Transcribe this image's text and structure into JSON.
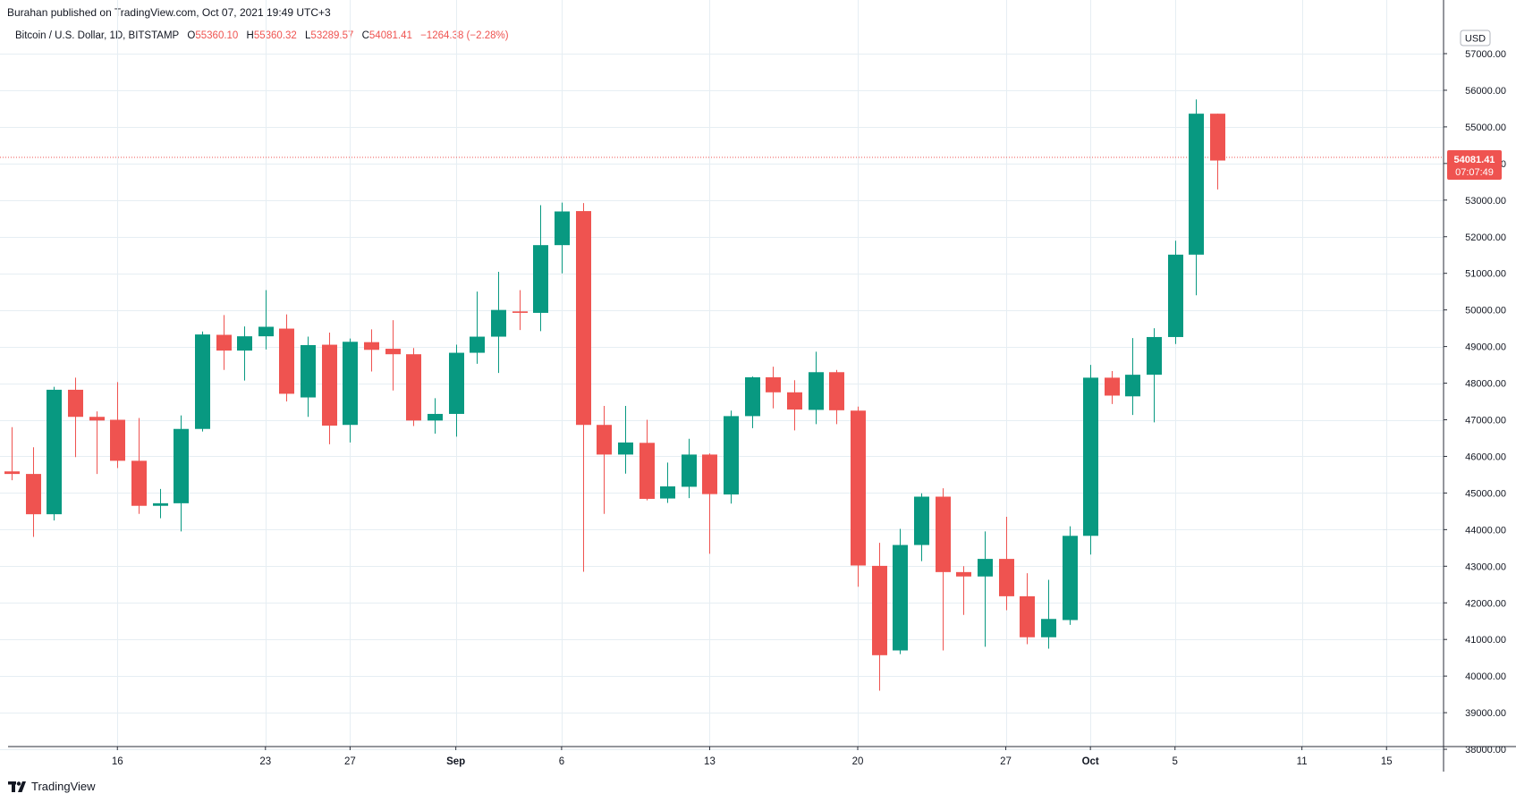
{
  "publisher_line": "Burahan published on TradingView.com, Oct 07, 2021 19:49 UTC+3",
  "legend": {
    "symbol": "Bitcoin / U.S. Dollar, 1D, BITSTAMP",
    "open_label": "O",
    "open": "55360.10",
    "high_label": "H",
    "high": "55360.32",
    "low_label": "L",
    "low": "53289.57",
    "close_label": "C",
    "close": "54081.41",
    "change": "−1264.38 (−2.28%)"
  },
  "currency": "USD",
  "price_tag": {
    "price": "54081.41",
    "countdown": "07:07:49"
  },
  "footer_brand": "TradingView",
  "colors": {
    "up": "#089981",
    "down": "#ef5350",
    "grid": "#e6eef3",
    "axis_text": "#131722"
  },
  "chart_data": {
    "type": "candlestick",
    "ylim": [
      38000,
      57700
    ],
    "y_ticks": [
      38000,
      39000,
      40000,
      41000,
      42000,
      43000,
      44000,
      45000,
      46000,
      47000,
      48000,
      49000,
      50000,
      51000,
      52000,
      53000,
      54000,
      55000,
      56000,
      57000
    ],
    "y_tick_labels": [
      "38000.00",
      "39000.00",
      "40000.00",
      "41000.00",
      "42000.00",
      "43000.00",
      "44000.00",
      "45000.00",
      "46000.00",
      "47000.00",
      "48000.00",
      "49000.00",
      "50000.00",
      "51000.00",
      "52000.00",
      "53000.00",
      "54000.00",
      "55000.00",
      "56000.00",
      "57000.00"
    ],
    "x_ticks": [
      {
        "label": "16",
        "bar": 5,
        "bold": false
      },
      {
        "label": "23",
        "bar": 12,
        "bold": false
      },
      {
        "label": "27",
        "bar": 16,
        "bold": false
      },
      {
        "label": "Sep",
        "bar": 21,
        "bold": true
      },
      {
        "label": "6",
        "bar": 26,
        "bold": false
      },
      {
        "label": "13",
        "bar": 33,
        "bold": false
      },
      {
        "label": "20",
        "bar": 40,
        "bold": false
      },
      {
        "label": "27",
        "bar": 47,
        "bold": false
      },
      {
        "label": "Oct",
        "bar": 51,
        "bold": true
      },
      {
        "label": "5",
        "bar": 55,
        "bold": false
      },
      {
        "label": "11",
        "bar": 61,
        "bold": false
      },
      {
        "label": "15",
        "bar": 65,
        "bold": false
      }
    ],
    "last_price": 54081.41,
    "candles": [
      {
        "o": 45590,
        "h": 46800,
        "l": 45350,
        "c": 45520
      },
      {
        "o": 45520,
        "h": 46250,
        "l": 43800,
        "c": 44420
      },
      {
        "o": 44420,
        "h": 47900,
        "l": 44250,
        "c": 47820
      },
      {
        "o": 47820,
        "h": 48150,
        "l": 45980,
        "c": 47080
      },
      {
        "o": 47080,
        "h": 47230,
        "l": 45520,
        "c": 46980
      },
      {
        "o": 47000,
        "h": 48030,
        "l": 45680,
        "c": 45880
      },
      {
        "o": 45880,
        "h": 47050,
        "l": 44430,
        "c": 44650
      },
      {
        "o": 44650,
        "h": 45110,
        "l": 44310,
        "c": 44720
      },
      {
        "o": 44720,
        "h": 47120,
        "l": 43950,
        "c": 46750
      },
      {
        "o": 46750,
        "h": 49410,
        "l": 46680,
        "c": 49330
      },
      {
        "o": 49320,
        "h": 49860,
        "l": 48360,
        "c": 48890
      },
      {
        "o": 48890,
        "h": 49550,
        "l": 48070,
        "c": 49280
      },
      {
        "o": 49280,
        "h": 50540,
        "l": 48920,
        "c": 49540
      },
      {
        "o": 49490,
        "h": 49880,
        "l": 47500,
        "c": 47710
      },
      {
        "o": 47610,
        "h": 49270,
        "l": 47080,
        "c": 49040
      },
      {
        "o": 49050,
        "h": 49380,
        "l": 46330,
        "c": 46840
      },
      {
        "o": 46860,
        "h": 49220,
        "l": 46380,
        "c": 49130
      },
      {
        "o": 49120,
        "h": 49470,
        "l": 48320,
        "c": 48910
      },
      {
        "o": 48940,
        "h": 49720,
        "l": 47800,
        "c": 48790
      },
      {
        "o": 48790,
        "h": 48960,
        "l": 46830,
        "c": 46980
      },
      {
        "o": 46980,
        "h": 47590,
        "l": 46620,
        "c": 47160
      },
      {
        "o": 47160,
        "h": 49050,
        "l": 46540,
        "c": 48830
      },
      {
        "o": 48830,
        "h": 50500,
        "l": 48530,
        "c": 49270
      },
      {
        "o": 49270,
        "h": 51040,
        "l": 48280,
        "c": 50000
      },
      {
        "o": 49960,
        "h": 50540,
        "l": 49450,
        "c": 49920
      },
      {
        "o": 49920,
        "h": 52860,
        "l": 49420,
        "c": 51770
      },
      {
        "o": 51770,
        "h": 52930,
        "l": 51000,
        "c": 52690
      },
      {
        "o": 52700,
        "h": 52920,
        "l": 42850,
        "c": 46860
      },
      {
        "o": 46860,
        "h": 47380,
        "l": 44430,
        "c": 46050
      },
      {
        "o": 46050,
        "h": 47380,
        "l": 45530,
        "c": 46380
      },
      {
        "o": 46370,
        "h": 47000,
        "l": 44800,
        "c": 44840
      },
      {
        "o": 44850,
        "h": 45830,
        "l": 44730,
        "c": 45180
      },
      {
        "o": 45170,
        "h": 46480,
        "l": 44860,
        "c": 46050
      },
      {
        "o": 46050,
        "h": 46080,
        "l": 43340,
        "c": 44970
      },
      {
        "o": 44960,
        "h": 47250,
        "l": 44710,
        "c": 47100
      },
      {
        "o": 47100,
        "h": 48180,
        "l": 46770,
        "c": 48160
      },
      {
        "o": 48160,
        "h": 48450,
        "l": 47310,
        "c": 47750
      },
      {
        "o": 47750,
        "h": 48080,
        "l": 46710,
        "c": 47280
      },
      {
        "o": 47270,
        "h": 48860,
        "l": 46880,
        "c": 48300
      },
      {
        "o": 48300,
        "h": 48360,
        "l": 46880,
        "c": 47260
      },
      {
        "o": 47250,
        "h": 47360,
        "l": 42440,
        "c": 43020
      },
      {
        "o": 43010,
        "h": 43640,
        "l": 39600,
        "c": 40570
      },
      {
        "o": 40700,
        "h": 44020,
        "l": 40600,
        "c": 43580
      },
      {
        "o": 43580,
        "h": 44990,
        "l": 43140,
        "c": 44900
      },
      {
        "o": 44900,
        "h": 45130,
        "l": 40700,
        "c": 42840
      },
      {
        "o": 42840,
        "h": 43000,
        "l": 41670,
        "c": 42720
      },
      {
        "o": 42720,
        "h": 43950,
        "l": 40800,
        "c": 43200
      },
      {
        "o": 43200,
        "h": 44350,
        "l": 41800,
        "c": 42180
      },
      {
        "o": 42180,
        "h": 42810,
        "l": 40870,
        "c": 41060
      },
      {
        "o": 41060,
        "h": 42630,
        "l": 40750,
        "c": 41560
      },
      {
        "o": 41530,
        "h": 44090,
        "l": 41400,
        "c": 43830
      },
      {
        "o": 43830,
        "h": 48500,
        "l": 43320,
        "c": 48150
      },
      {
        "o": 48150,
        "h": 48330,
        "l": 47430,
        "c": 47660
      },
      {
        "o": 47640,
        "h": 49230,
        "l": 47130,
        "c": 48230
      },
      {
        "o": 48230,
        "h": 49500,
        "l": 46930,
        "c": 49260
      },
      {
        "o": 49260,
        "h": 51890,
        "l": 49070,
        "c": 51510
      },
      {
        "o": 51510,
        "h": 55750,
        "l": 50400,
        "c": 55360
      },
      {
        "o": 55360,
        "h": 55360,
        "l": 53290,
        "c": 54081
      }
    ]
  }
}
